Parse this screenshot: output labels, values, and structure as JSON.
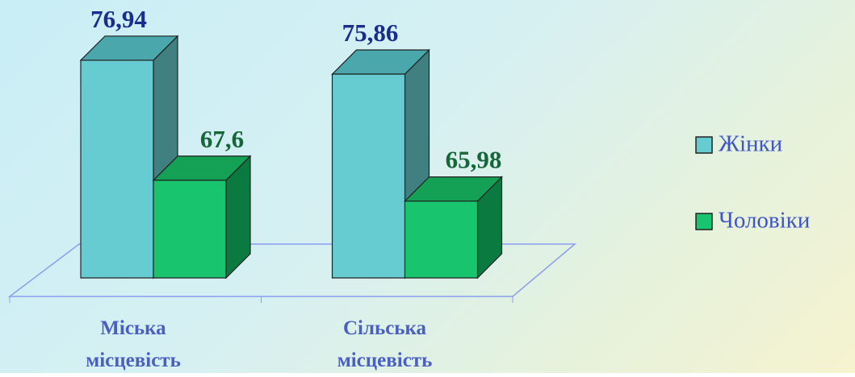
{
  "chart_data": {
    "type": "bar3d",
    "categories": [
      "Міська місцевість",
      "Сільська місцевість"
    ],
    "series": [
      {
        "name": "Жінки",
        "color": "#66ccd2",
        "values": [
          76.94,
          75.86
        ],
        "value_labels": [
          "76,94",
          "75,86"
        ]
      },
      {
        "name": "Чоловіки",
        "color": "#18c46e",
        "values": [
          67.6,
          65.98
        ],
        "value_labels": [
          "67,6",
          "65,98"
        ]
      }
    ],
    "ylim": [
      60,
      80
    ],
    "legend": "right"
  }
}
